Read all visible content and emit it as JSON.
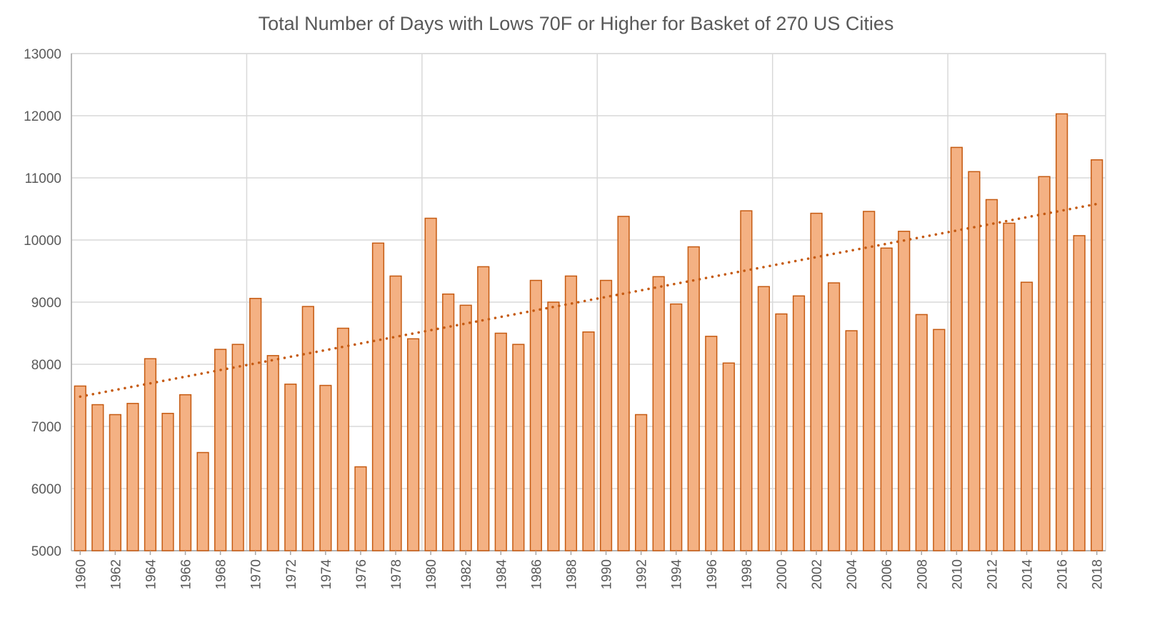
{
  "chart_data": {
    "type": "bar",
    "title": "Total Number of Days with Lows 70F or Higher for Basket of 270 US Cities",
    "xlabel": "",
    "ylabel": "",
    "ylim": [
      5000,
      13000
    ],
    "yticks": [
      5000,
      6000,
      7000,
      8000,
      9000,
      10000,
      11000,
      12000,
      13000
    ],
    "xtick_labels": [
      "1960",
      "1962",
      "1964",
      "1966",
      "1968",
      "1970",
      "1972",
      "1974",
      "1976",
      "1978",
      "1980",
      "1982",
      "1984",
      "1986",
      "1988",
      "1990",
      "1992",
      "1994",
      "1996",
      "1998",
      "2000",
      "2002",
      "2004",
      "2006",
      "2008",
      "2010",
      "2012",
      "2014",
      "2016",
      "2018"
    ],
    "categories": [
      "1960",
      "1961",
      "1962",
      "1963",
      "1964",
      "1965",
      "1966",
      "1967",
      "1968",
      "1969",
      "1970",
      "1971",
      "1972",
      "1973",
      "1974",
      "1975",
      "1976",
      "1977",
      "1978",
      "1979",
      "1980",
      "1981",
      "1982",
      "1983",
      "1984",
      "1985",
      "1986",
      "1987",
      "1988",
      "1989",
      "1990",
      "1991",
      "1992",
      "1993",
      "1994",
      "1995",
      "1996",
      "1997",
      "1998",
      "1999",
      "2000",
      "2001",
      "2002",
      "2003",
      "2004",
      "2005",
      "2006",
      "2007",
      "2008",
      "2009",
      "2010",
      "2011",
      "2012",
      "2013",
      "2014",
      "2015",
      "2016",
      "2017",
      "2018"
    ],
    "values": [
      7650,
      7350,
      7190,
      7370,
      8090,
      7210,
      7510,
      6580,
      8240,
      8320,
      9060,
      8140,
      7680,
      8930,
      7660,
      8580,
      6350,
      9950,
      9420,
      8410,
      10350,
      9130,
      8950,
      9570,
      8500,
      8320,
      9350,
      9000,
      9420,
      8520,
      9350,
      10380,
      7190,
      9410,
      8970,
      9890,
      8450,
      8020,
      10470,
      9250,
      8810,
      9100,
      10430,
      9310,
      8540,
      10460,
      9870,
      10140,
      8800,
      8560,
      11490,
      11100,
      10650,
      10270,
      9320,
      11020,
      12030,
      10070,
      11290
    ],
    "trendline": {
      "style": "dotted",
      "start": 7480,
      "end": 10580
    },
    "grid": true,
    "colors": {
      "bar_fill": "#F4B183",
      "bar_edge": "#C55A11",
      "trend": "#C55A11",
      "grid": "#D9D9D9"
    }
  }
}
